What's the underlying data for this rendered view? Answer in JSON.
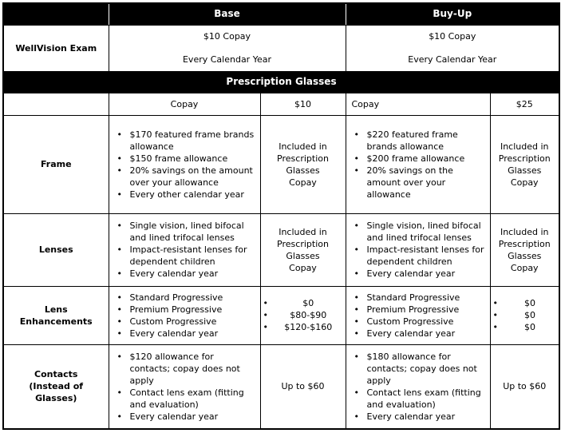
{
  "bullet_char": "•",
  "colors": {
    "band_bg": "#000000",
    "band_text": "#ffffff",
    "body_text": "#000000"
  },
  "header": {
    "base": "Base",
    "buyup": "Buy-Up"
  },
  "wellvision": {
    "label": "WellVision Exam",
    "base": {
      "copay": "$10 Copay",
      "frequency": "Every Calendar Year"
    },
    "buyup": {
      "copay": "$10 Copay",
      "frequency": "Every Calendar Year"
    }
  },
  "section": {
    "title": "Prescription Glasses"
  },
  "copay_row": {
    "base_label": "Copay",
    "base_value": "$10",
    "buyup_label": "Copay",
    "buyup_value": "$25"
  },
  "benefit_rows": [
    {
      "label": "Frame",
      "base_details": [
        "$170 featured frame brands allowance",
        "$150 frame allowance",
        "20% savings on the amount over your allowance",
        "Every other calendar year"
      ],
      "base_cost": "Included in\nPrescription\nGlasses\nCopay",
      "buyup_details": [
        "$220 featured frame brands allowance",
        "$200 frame allowance",
        "20% savings on the amount over your allowance"
      ],
      "buyup_cost": "Included in\nPrescription\nGlasses\nCopay"
    },
    {
      "label": "Lenses",
      "base_details": [
        "Single vision, lined bifocal and lined trifocal lenses",
        "Impact-resistant lenses for dependent children",
        "Every calendar year"
      ],
      "base_cost": "Included in\nPrescription\nGlasses\nCopay",
      "buyup_details": [
        "Single vision, lined bifocal and lined trifocal lenses",
        "Impact-resistant lenses for dependent children",
        "Every calendar year"
      ],
      "buyup_cost": "Included in\nPrescription\nGlasses\nCopay"
    },
    {
      "label": "Lens\nEnhancements",
      "base_details": [
        "Standard Progressive",
        "Premium Progressive",
        "Custom Progressive",
        "Every calendar year"
      ],
      "base_cost_list": [
        "$0",
        "$80-$90",
        "$120-$160"
      ],
      "buyup_details": [
        "Standard Progressive",
        "Premium Progressive",
        "Custom Progressive",
        "Every calendar year"
      ],
      "buyup_cost_list": [
        "$0",
        "$0",
        "$0"
      ]
    },
    {
      "label": "Contacts\n(Instead of\nGlasses)",
      "base_details": [
        "$120 allowance for contacts; copay does not apply",
        "Contact lens exam (fitting and evaluation)",
        "Every calendar year"
      ],
      "base_cost": "Up to $60",
      "buyup_details": [
        "$180 allowance for contacts; copay does not apply",
        "Contact lens exam (fitting and evaluation)",
        "Every calendar year"
      ],
      "buyup_cost": "Up to $60"
    }
  ]
}
